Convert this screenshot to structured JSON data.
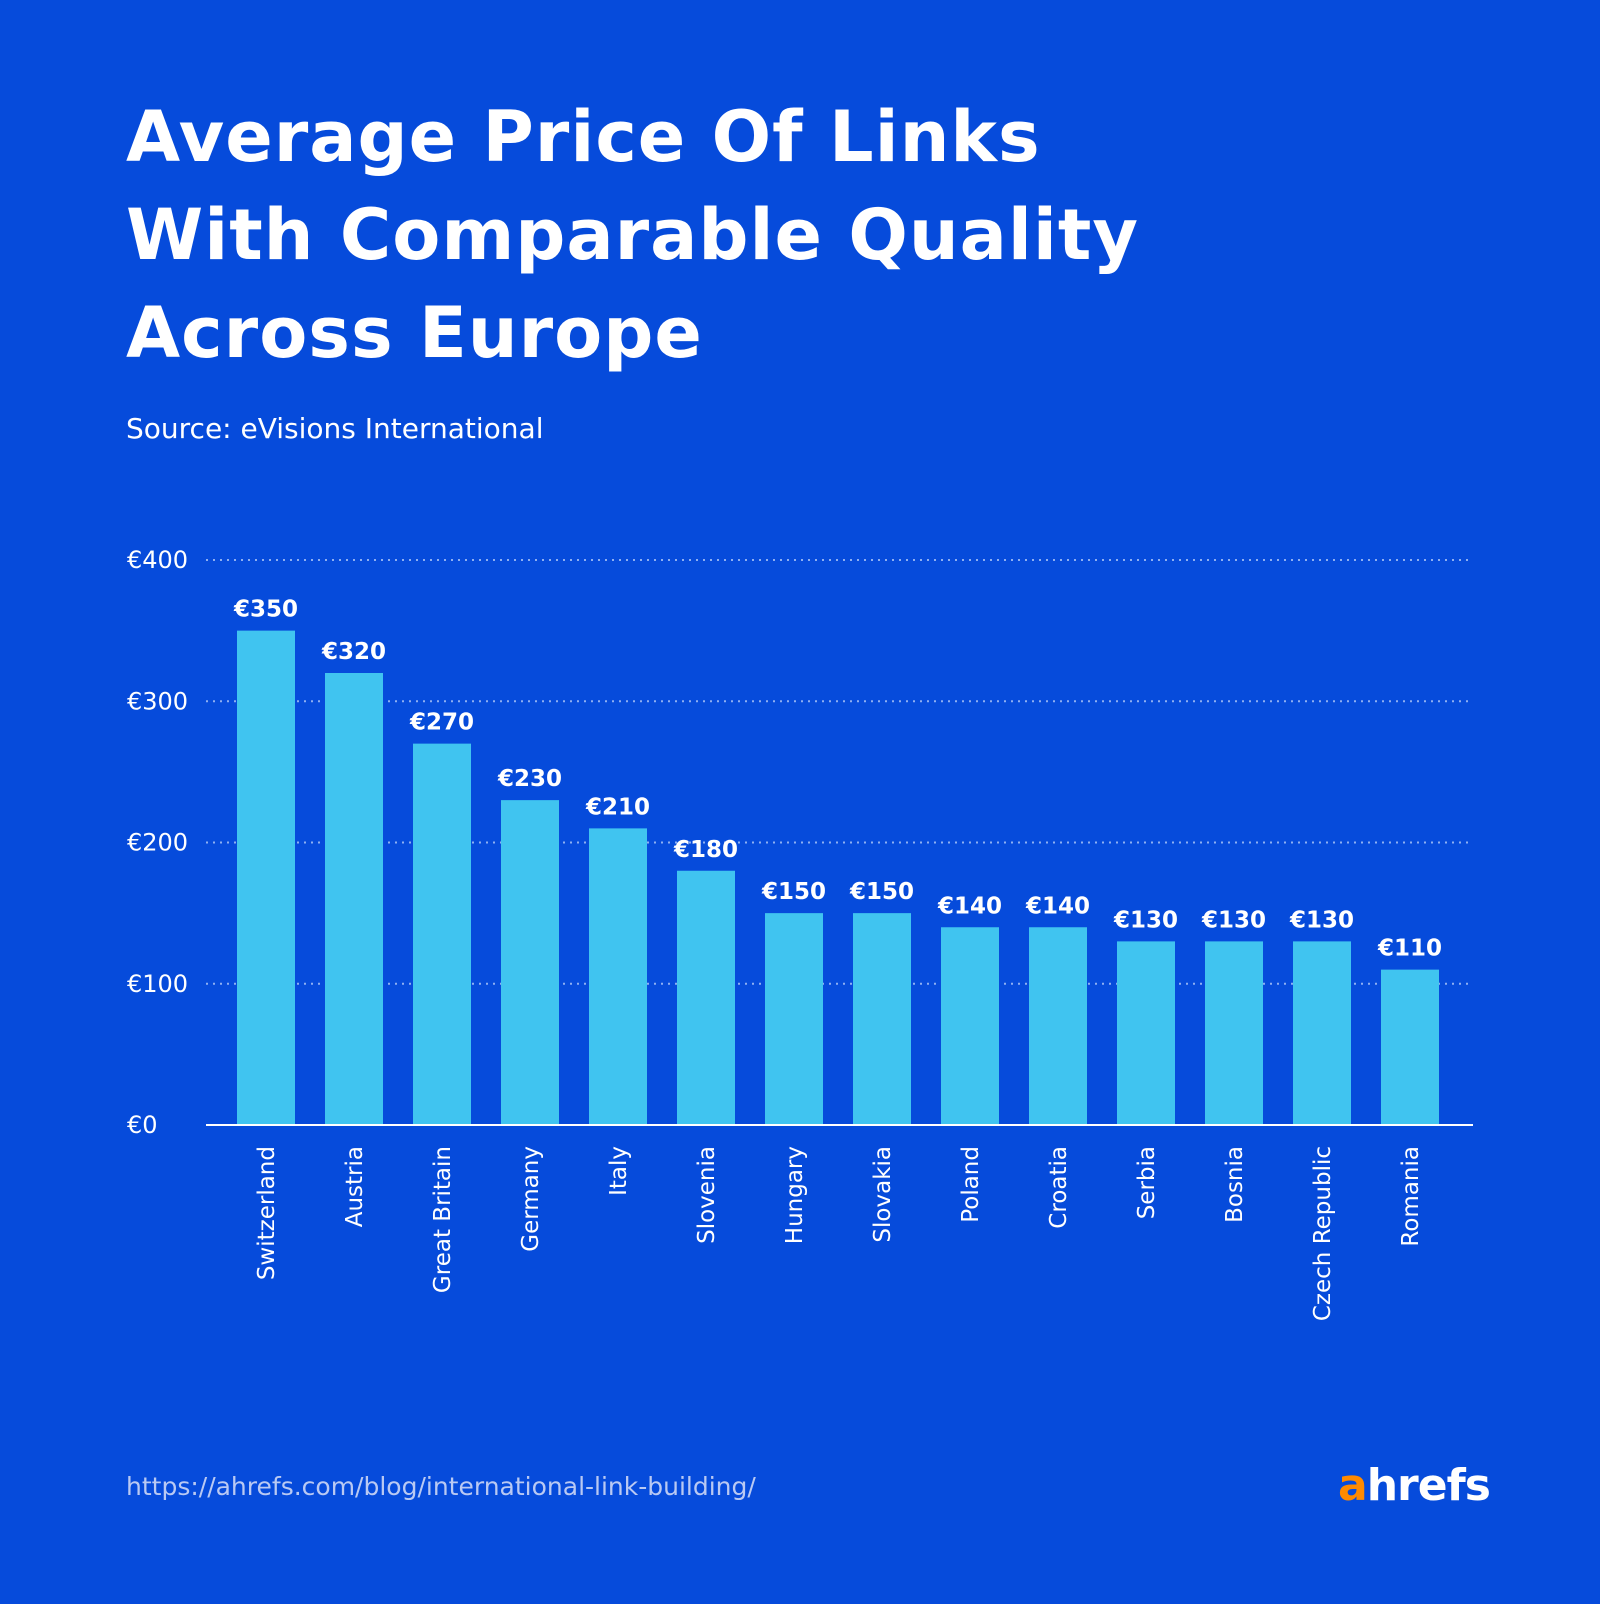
{
  "title_lines": [
    "Average Price Of Links",
    "With Comparable Quality",
    "Across Europe"
  ],
  "source": "Source: eVisions International",
  "footer_url": "https://ahrefs.com/blog/international-link-building/",
  "logo": {
    "text_accent": "a",
    "text_main": "hrefs"
  },
  "colors": {
    "background": "#064bdb",
    "bar": "#40c4f0",
    "logo_accent": "#ff8a00"
  },
  "chart_data": {
    "type": "bar",
    "title": "Average Price Of Links With Comparable Quality Across Europe",
    "categories": [
      "Switzerland",
      "Austria",
      "Great Britain",
      "Germany",
      "Italy",
      "Slovenia",
      "Hungary",
      "Slovakia",
      "Poland",
      "Croatia",
      "Serbia",
      "Bosnia",
      "Czech Republic",
      "Romania"
    ],
    "values": [
      350,
      320,
      270,
      230,
      210,
      180,
      150,
      150,
      140,
      140,
      130,
      130,
      130,
      110
    ],
    "value_labels": [
      "€350",
      "€320",
      "€270",
      "€230",
      "€210",
      "€180",
      "€150",
      "€150",
      "€140",
      "€140",
      "€130",
      "€130",
      "€130",
      "€110"
    ],
    "ylim": [
      0,
      400
    ],
    "yticks": [
      0,
      100,
      200,
      300,
      400
    ],
    "ytick_labels": [
      "€0",
      "€100",
      "€200",
      "€300",
      "€400"
    ],
    "grid": "horizontal dotted",
    "xlabel": "",
    "ylabel": ""
  }
}
